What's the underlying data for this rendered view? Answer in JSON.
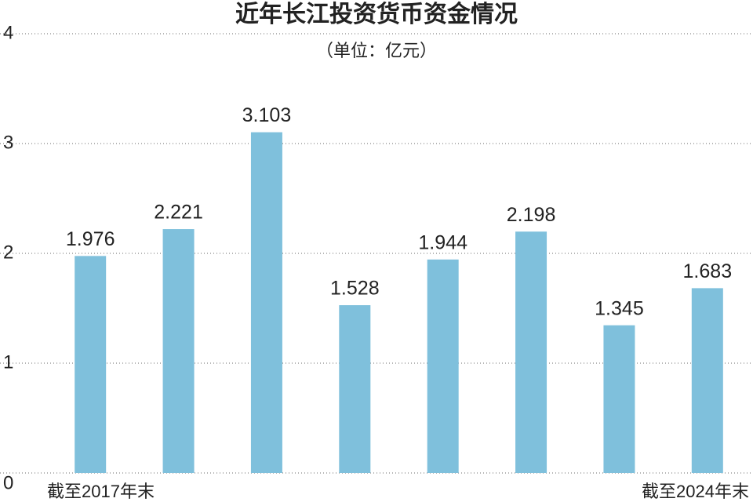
{
  "chart_data": {
    "type": "bar",
    "title": "近年长江投资货币资金情况",
    "subtitle": "（单位：亿元）",
    "categories": [
      "截至2017年末",
      null,
      null,
      null,
      null,
      null,
      null,
      "截至2024年末"
    ],
    "values": [
      1.976,
      2.221,
      3.103,
      1.528,
      1.944,
      2.198,
      1.345,
      1.683
    ],
    "color": "#7fc0dc",
    "ylim": [
      0,
      4
    ],
    "yticks": [
      0,
      1,
      2,
      3,
      4
    ],
    "grid": true
  }
}
